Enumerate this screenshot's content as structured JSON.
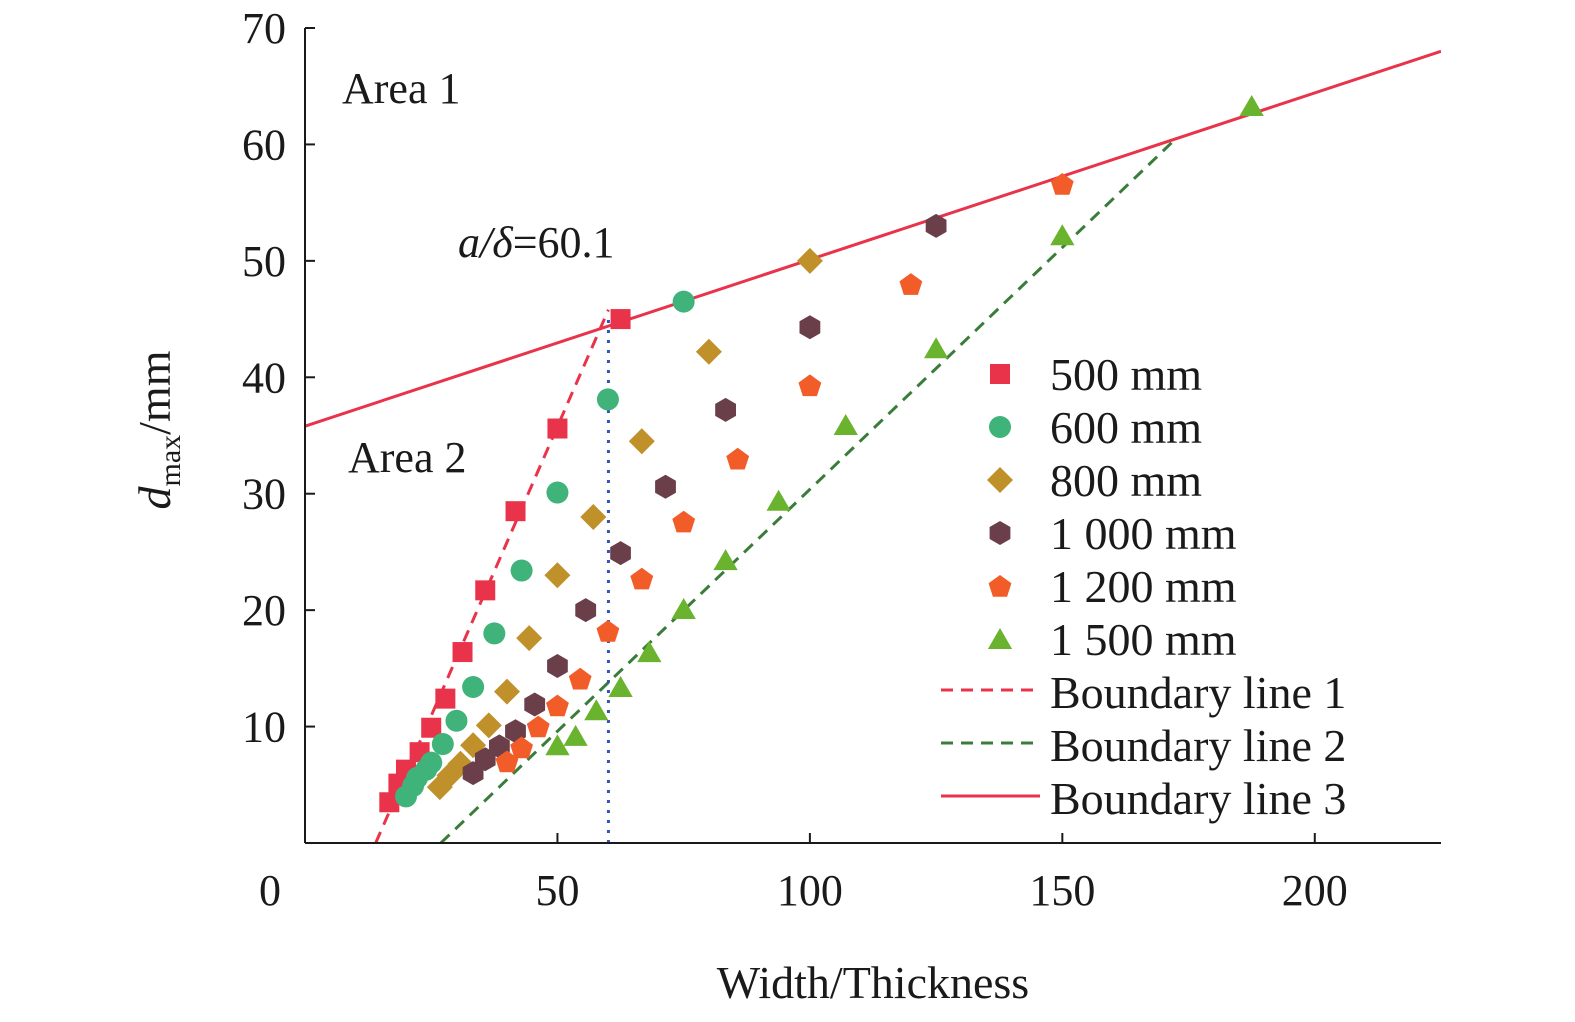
{
  "chart_data": {
    "type": "scatter",
    "xlabel": "Width/Thickness",
    "ylabel_main": "d",
    "ylabel_sub": "max",
    "ylabel_unit": "/mm",
    "xlim": [
      0,
      225
    ],
    "ylim": [
      0,
      70
    ],
    "x_ticks": [
      0,
      50,
      100,
      150,
      200
    ],
    "y_ticks": [
      10,
      20,
      30,
      40,
      50,
      60,
      70
    ],
    "grid": false,
    "legend_position": "right",
    "series": [
      {
        "name": "500 mm",
        "marker": "square",
        "color": "#e8334a",
        "x": [
          16.7,
          18.5,
          20.0,
          22.7,
          25.0,
          27.8,
          31.2,
          35.7,
          41.7,
          50.0,
          62.5
        ],
        "y": [
          3.5,
          5.1,
          6.3,
          7.8,
          9.9,
          12.4,
          16.4,
          21.7,
          28.5,
          35.6,
          45.0
        ]
      },
      {
        "name": "600 mm",
        "marker": "circle",
        "color": "#3fb37a",
        "x": [
          20.0,
          21.4,
          22.2,
          24.0,
          25.0,
          27.3,
          30.0,
          33.3,
          37.5,
          42.9,
          50.0,
          60.0,
          75.0
        ],
        "y": [
          4.0,
          4.9,
          5.6,
          6.3,
          6.9,
          8.5,
          10.5,
          13.4,
          18.0,
          23.4,
          30.1,
          38.1,
          46.5
        ]
      },
      {
        "name": "800 mm",
        "marker": "diamond",
        "color": "#c0902a",
        "x": [
          26.7,
          28.6,
          30.8,
          33.3,
          36.4,
          40.0,
          44.4,
          50.0,
          57.1,
          66.7,
          80.0,
          100.0
        ],
        "y": [
          4.8,
          5.8,
          6.8,
          8.4,
          10.1,
          13.0,
          17.6,
          23.0,
          28.0,
          34.5,
          42.2,
          50.0
        ]
      },
      {
        "name": "1 000 mm",
        "marker": "hexagon",
        "color": "#6b3f4a",
        "x": [
          33.3,
          35.7,
          38.5,
          41.7,
          45.5,
          50.0,
          55.6,
          62.5,
          71.4,
          83.3,
          100.0,
          125.0
        ],
        "y": [
          6.0,
          7.2,
          8.3,
          9.6,
          11.9,
          15.2,
          20.0,
          24.9,
          30.6,
          37.2,
          44.3,
          53.0
        ]
      },
      {
        "name": "1 200 mm",
        "marker": "pentagon",
        "color": "#f25c28",
        "x": [
          40.0,
          42.9,
          46.2,
          50.0,
          54.5,
          60.0,
          66.7,
          75.0,
          85.7,
          100.0,
          120.0,
          150.0
        ],
        "y": [
          7.0,
          8.2,
          10.0,
          11.8,
          14.1,
          18.2,
          22.7,
          27.6,
          33.0,
          39.3,
          48.0,
          56.6
        ]
      },
      {
        "name": "1 500 mm",
        "marker": "triangle",
        "color": "#6ab32e",
        "x": [
          50.0,
          53.6,
          57.7,
          62.5,
          68.2,
          75.0,
          83.3,
          93.8,
          107.1,
          125.0,
          150.0,
          187.5
        ],
        "y": [
          8.4,
          9.2,
          11.4,
          13.4,
          16.4,
          20.1,
          24.3,
          29.4,
          35.9,
          42.5,
          52.2,
          63.3
        ]
      }
    ],
    "lines": [
      {
        "name": "Boundary line 1",
        "style": "dashed",
        "color": "#e8334a",
        "x": [
          14.0,
          60.1
        ],
        "y": [
          0,
          45.8
        ]
      },
      {
        "name": "Boundary line 2",
        "style": "dashed",
        "color": "#3a7d3a",
        "x": [
          26.9,
          172.5
        ],
        "y": [
          0,
          60.5
        ]
      },
      {
        "name": "Boundary line 3",
        "style": "solid",
        "color": "#e8334a",
        "x": [
          0,
          225
        ],
        "y": [
          35.8,
          68.0
        ]
      }
    ],
    "vline": {
      "x": 60.1,
      "y": [
        0,
        45.0
      ],
      "style": "dotted",
      "color": "#3355bb"
    },
    "annotations": {
      "area1": "Area 1",
      "area2": "Area 2",
      "ratio_italic": "a/δ",
      "ratio_value": "=60.1"
    }
  }
}
